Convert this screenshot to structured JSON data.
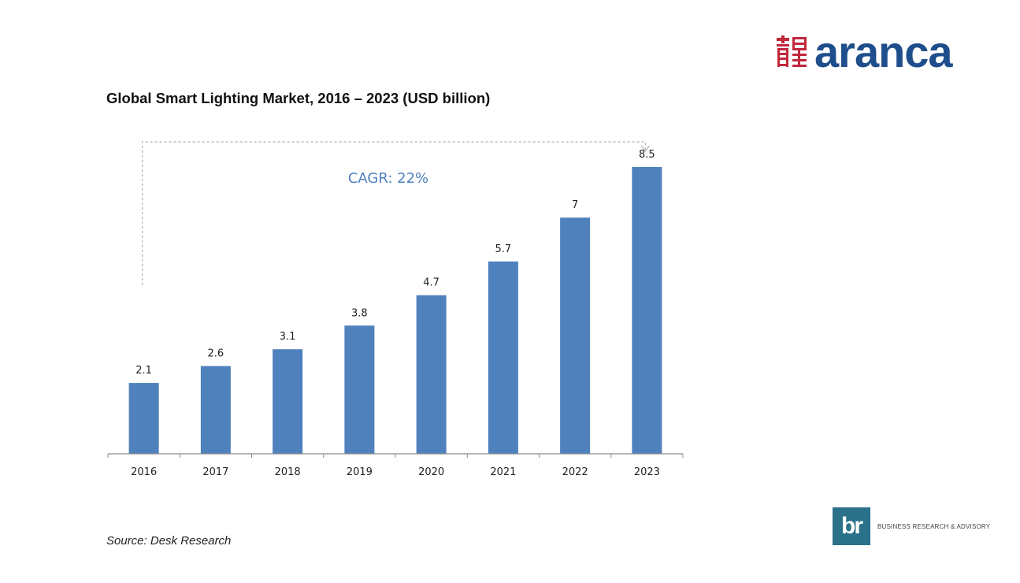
{
  "brand": {
    "name": "aranca",
    "mark_icon": "aranca-chinese-seal-icon",
    "color": "#1f4e8c",
    "mark_color": "#c0283c"
  },
  "title": "Global Smart Lighting Market, 2016 – 2023 (USD billion)",
  "source": "Source: Desk Research",
  "footer_logo": {
    "initials": "br",
    "tagline": "BUSINESS RESEARCH & ADVISORY",
    "color": "#2a7189"
  },
  "chart_data": {
    "type": "bar",
    "categories": [
      "2016",
      "2017",
      "2018",
      "2019",
      "2020",
      "2021",
      "2022",
      "2023"
    ],
    "values": [
      2.1,
      2.6,
      3.1,
      3.8,
      4.7,
      5.7,
      7,
      8.5
    ],
    "value_labels": [
      "2.1",
      "2.6",
      "3.1",
      "3.8",
      "4.7",
      "5.7",
      "7",
      "8.5"
    ],
    "title": "Global Smart Lighting Market, 2016 – 2023 (USD billion)",
    "xlabel": "",
    "ylabel": "USD billion",
    "ylim": [
      0,
      8.5
    ],
    "grid": false,
    "bar_color": "#4f81bd",
    "annotation": {
      "text": "CAGR: 22%",
      "color": "#4f81bd",
      "from": "2016",
      "to": "2023"
    }
  }
}
